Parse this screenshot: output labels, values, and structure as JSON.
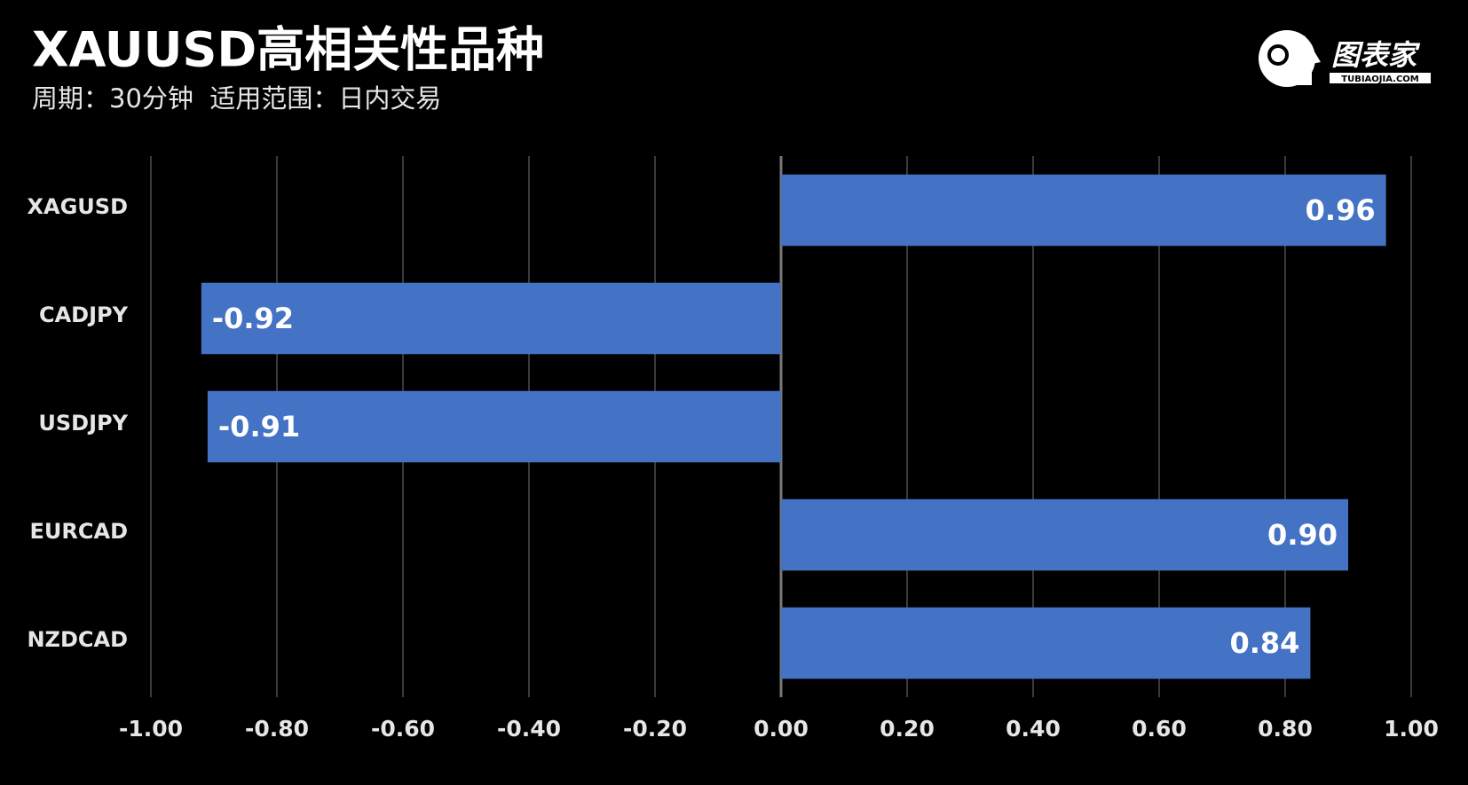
{
  "chart_data": {
    "type": "bar",
    "orientation": "horizontal",
    "title": "XAUUSD高相关性品种",
    "subtitle": "周期：30分钟  适用范围：日内交易",
    "categories": [
      "XAGUSD",
      "CADJPY",
      "USDJPY",
      "EURCAD",
      "NZDCAD"
    ],
    "values": [
      0.96,
      -0.92,
      -0.91,
      0.9,
      0.84
    ],
    "value_labels": [
      "0.96",
      "-0.92",
      "-0.91",
      "0.90",
      "0.84"
    ],
    "color": "#4472c4",
    "xlim": [
      -1,
      1
    ],
    "xticks": [
      {
        "value": -1,
        "label": "-1.00"
      },
      {
        "value": -0.8,
        "label": "-0.80"
      },
      {
        "value": -0.6,
        "label": "-0.60"
      },
      {
        "value": -0.4,
        "label": "-0.40"
      },
      {
        "value": -0.2,
        "label": "-0.20"
      },
      {
        "value": 0,
        "label": "0.00"
      },
      {
        "value": 0.2,
        "label": "0.20"
      },
      {
        "value": 0.4,
        "label": "0.40"
      },
      {
        "value": 0.6,
        "label": "0.60"
      },
      {
        "value": 0.8,
        "label": "0.80"
      },
      {
        "value": 1,
        "label": "1.00"
      }
    ],
    "grid": true
  },
  "logo": {
    "name": "图表家",
    "domain": "TUBIAOJIA.COM"
  }
}
